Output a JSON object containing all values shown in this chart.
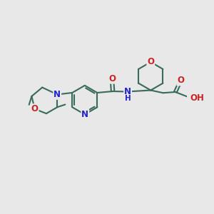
{
  "background_color": "#e8e8e8",
  "bond_color": "#3a6b5a",
  "bond_width": 1.5,
  "atom_colors": {
    "N": "#2222cc",
    "O": "#cc2222",
    "C": "#3a6b5a"
  },
  "font_size": 8.5,
  "figsize": [
    3.0,
    3.0
  ],
  "dpi": 100
}
